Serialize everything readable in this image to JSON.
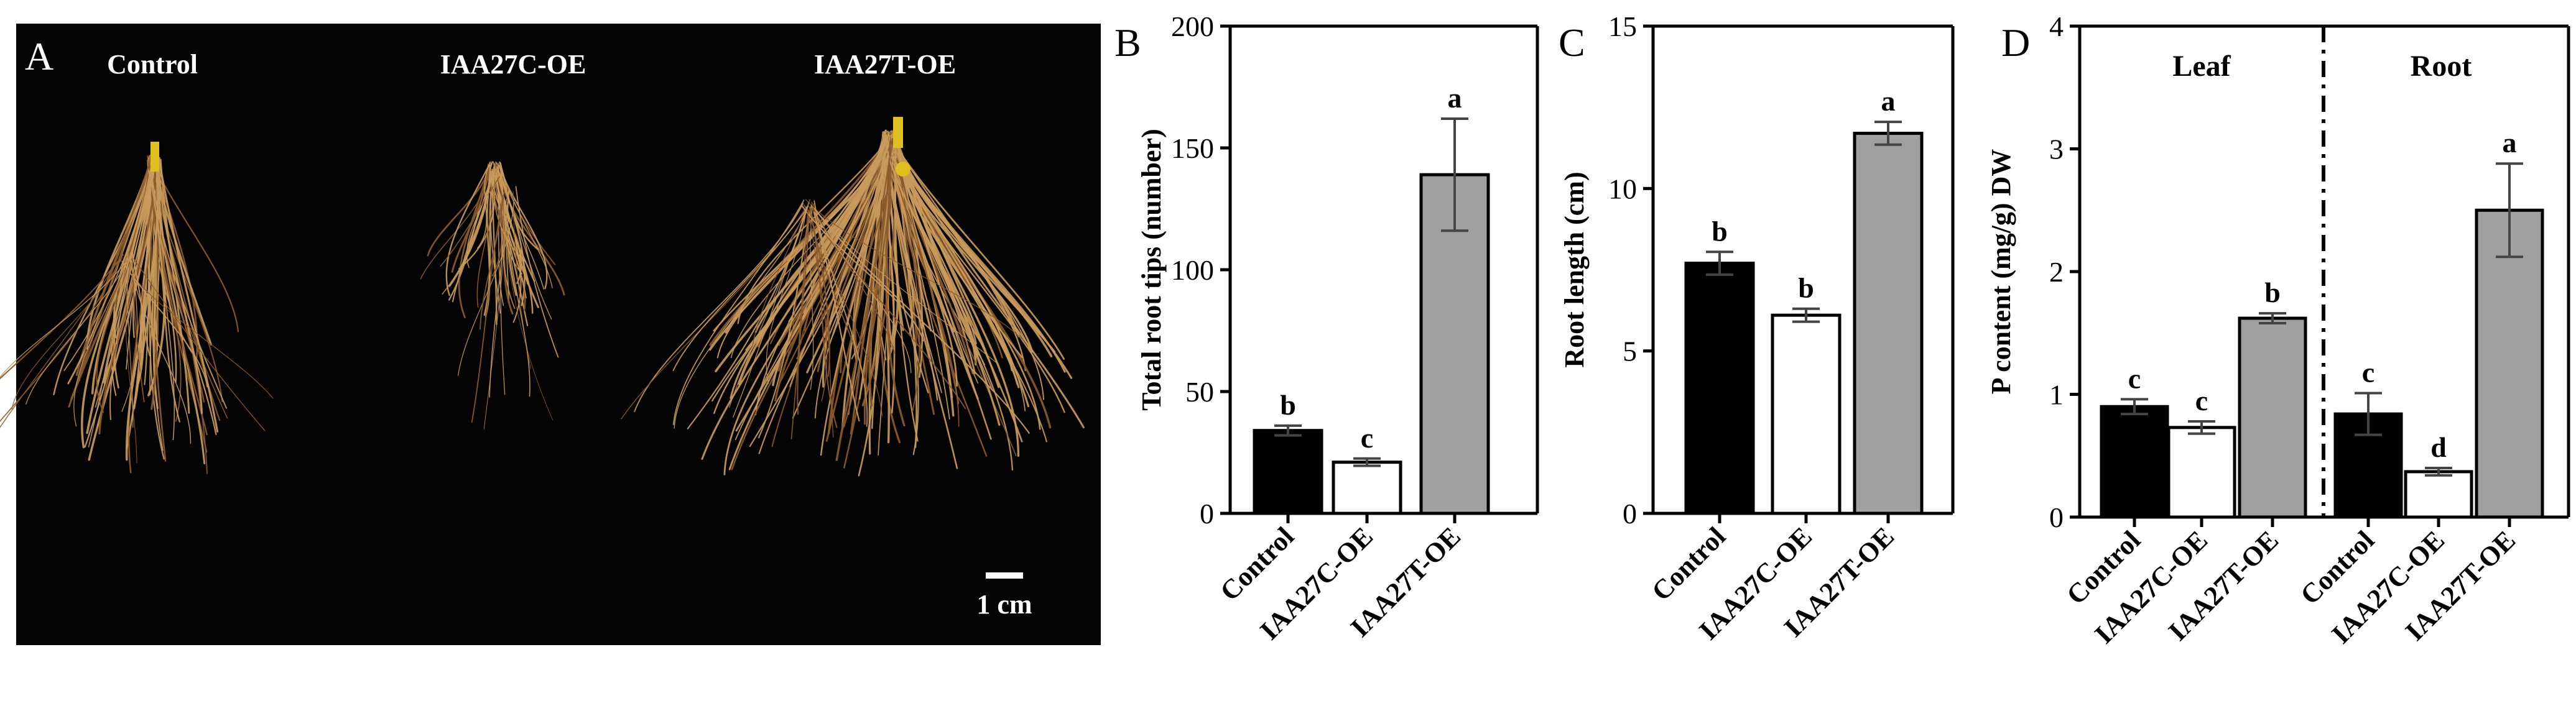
{
  "figure": {
    "panel_a": {
      "letter": "A",
      "labels": [
        "Control",
        "IAA27C-OE",
        "IAA27T-OE"
      ],
      "scale_bar_label": "1 cm",
      "colors": {
        "background": "#040404",
        "text": "#ffffff",
        "root": "#c89a5c",
        "root_dark": "#8a5a2c",
        "shoot": "#e0c020"
      }
    },
    "colors": {
      "control": "#000000",
      "iaa27c": "#ffffff",
      "iaa27t": "#a0a0a0",
      "axis": "#000000"
    }
  },
  "chart_data": [
    {
      "panel": "B",
      "type": "bar",
      "categories": [
        "Control",
        "IAA27C-OE",
        "IAA27T-OE"
      ],
      "values": [
        34,
        21,
        139
      ],
      "errors": [
        2,
        1.5,
        23
      ],
      "letters": [
        "b",
        "c",
        "a"
      ],
      "ylabel": "Total root tips (number)",
      "ylim": [
        0,
        200
      ],
      "yticks": [
        0,
        50,
        100,
        150,
        200
      ]
    },
    {
      "panel": "C",
      "type": "bar",
      "categories": [
        "Control",
        "IAA27C-OE",
        "IAA27T-OE"
      ],
      "values": [
        7.7,
        6.1,
        11.7
      ],
      "errors": [
        0.35,
        0.2,
        0.35
      ],
      "letters": [
        "b",
        "b",
        "a"
      ],
      "ylabel": "Root length (cm)",
      "ylim": [
        0,
        15
      ],
      "yticks": [
        0,
        5,
        10,
        15
      ]
    },
    {
      "panel": "D",
      "type": "bar",
      "groups": [
        "Leaf",
        "Root"
      ],
      "categories": [
        "Control",
        "IAA27C-OE",
        "IAA27T-OE",
        "Control",
        "IAA27C-OE",
        "IAA27T-OE"
      ],
      "values": [
        0.9,
        0.73,
        1.62,
        0.84,
        0.37,
        2.5
      ],
      "errors": [
        0.06,
        0.05,
        0.04,
        0.17,
        0.03,
        0.38
      ],
      "letters": [
        "c",
        "c",
        "b",
        "c",
        "d",
        "a"
      ],
      "ylabel": "P content (mg/g) DW",
      "ylim": [
        0,
        4
      ],
      "yticks": [
        0,
        1,
        2,
        3,
        4
      ]
    }
  ]
}
